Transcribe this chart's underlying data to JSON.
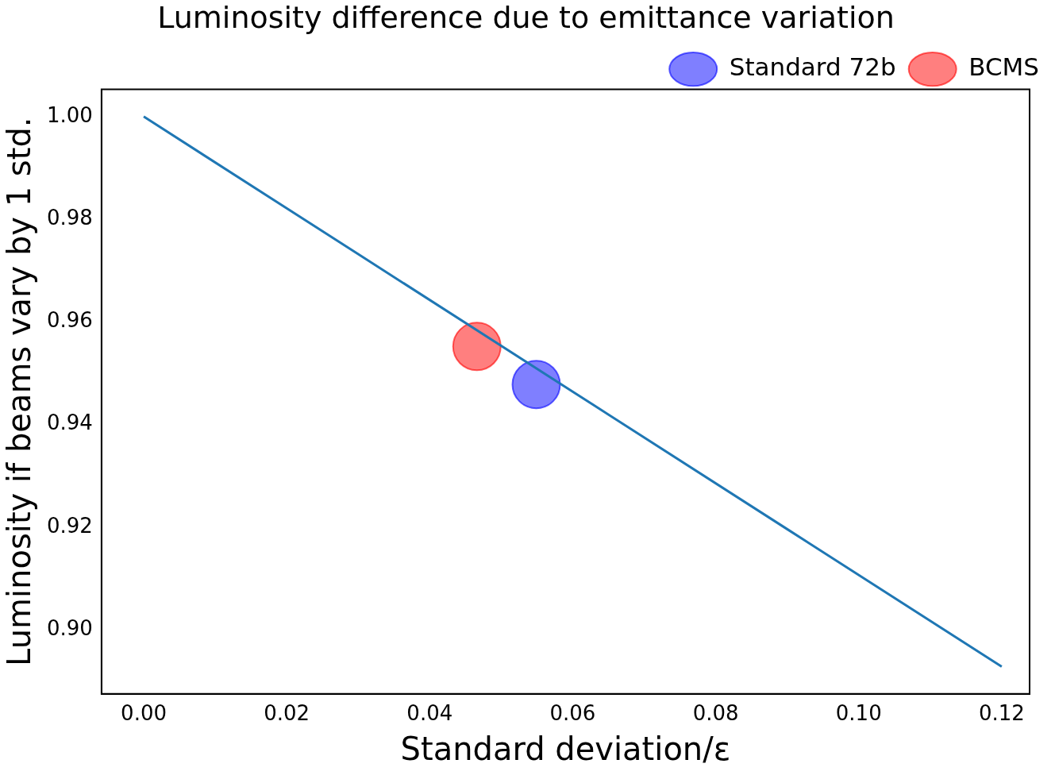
{
  "chart_data": {
    "type": "scatter",
    "title": "Luminosity difference due to emittance variation",
    "xlabel": "Standard deviation/ε",
    "ylabel": "Luminosity if beams vary by 1 std.",
    "series": [
      {
        "type": "line",
        "color": "#1f77b4",
        "x": [
          0,
          0.03,
          0.06,
          0.09,
          0.12
        ],
        "values": [
          1,
          0.9732,
          0.9464,
          0.9196,
          0.8928
        ],
        "marker": "none"
      },
      {
        "name": "Standard 72b",
        "color": "#0000ff",
        "x": [
          0.0549
        ],
        "values": [
          0.9478
        ],
        "marker": "circle"
      },
      {
        "name": "BCMS",
        "color": "#ff0000",
        "x": [
          0.0466
        ],
        "values": [
          0.9552
        ],
        "marker": "circle"
      }
    ],
    "xlim": [
      -0.0059,
      0.1239
    ],
    "ylim": [
      0.8875,
      1.0053
    ],
    "xticks": [
      {
        "value": 0,
        "label": "0.00"
      },
      {
        "value": 0.02,
        "label": "0.02"
      },
      {
        "value": 0.04,
        "label": "0.04"
      },
      {
        "value": 0.06,
        "label": "0.06"
      },
      {
        "value": 0.08,
        "label": "0.08"
      },
      {
        "value": 0.1,
        "label": "0.10"
      },
      {
        "value": 0.12,
        "label": "0.12"
      }
    ],
    "yticks": [
      {
        "value": 0.9,
        "label": "0.90"
      },
      {
        "value": 0.92,
        "label": "0.92"
      },
      {
        "value": 0.94,
        "label": "0.94"
      },
      {
        "value": 0.96,
        "label": "0.96"
      },
      {
        "value": 0.98,
        "label": "0.98"
      },
      {
        "value": 1,
        "label": "1.00"
      }
    ],
    "grid": false,
    "legend": "top right"
  }
}
